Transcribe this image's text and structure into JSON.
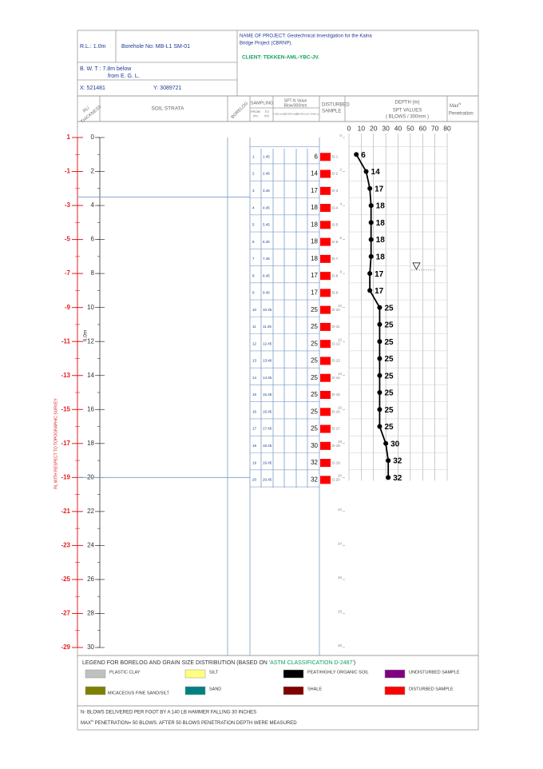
{
  "header": {
    "rl": "R.L.: 1.0m",
    "borehole": "Borehole No: MB-L1 SM-01",
    "bwt_1": "B. W. T : 7.8m below",
    "bwt_2": "from E. G. L.",
    "x": "X: 521481",
    "y": "Y: 3089721",
    "project": [
      "NAME OF PROJECT: Geotechnical Investigation for the Kalna",
      "Bridge Project (CBRNP)."
    ],
    "client": "CLIENT: TEKKEN-AML-YBC-JV."
  },
  "columns": {
    "rl": [
      "RL/",
      "THICKNESS"
    ],
    "strata": "SOIL STRATA",
    "borelog": "BORELOG",
    "sampling": "SAMPLING",
    "from": "FROM",
    "to": "TO",
    "unit": "(m)",
    "spt": [
      "SPT-N Value",
      "Blow/300mm"
    ],
    "spt_sub": [
      "0-150 (mm)",
      "150-300 (mm)",
      "300-450 (mm)",
      "N=(b+c)"
    ],
    "disturbed": [
      "DISTURBED",
      "SAMPLE"
    ],
    "depth": "DEPTH  (m)",
    "spt_values": [
      "SPT VALUES",
      "( BLOWS / 300mm )"
    ],
    "max": [
      "Max",
      "Penetration"
    ],
    "max_sup": "N"
  },
  "depth_lim": [
    0,
    30
  ],
  "depth_ticks": [
    0,
    2,
    4,
    6,
    8,
    10,
    12,
    14,
    16,
    18,
    20,
    22,
    24,
    26,
    28,
    30
  ],
  "rl_ticks": [
    1,
    -1,
    -3,
    -5,
    -7,
    -9,
    -11,
    -13,
    -15,
    -17,
    -19,
    -21,
    -23,
    -25,
    -27,
    -29
  ],
  "rl_axis_title": "RL WITH RESPECT TO TOPOGRAPHIC SURVEY",
  "strata_thickness": "6.0m",
  "stratum_boundaries": [
    3.5,
    20
  ],
  "water_table_depth": 7.8,
  "spt_chart": {
    "xlim": [
      0,
      80
    ],
    "xticks": [
      0,
      10,
      20,
      30,
      40,
      50,
      60,
      70,
      80
    ]
  },
  "samples": [
    {
      "no": "1",
      "from": 1,
      "to": "1.45",
      "n": 6,
      "label": "D-1"
    },
    {
      "no": "2",
      "from": 2,
      "to": "2.45",
      "n": 14,
      "label": "D-2"
    },
    {
      "no": "3",
      "from": 3,
      "to": "3.45",
      "n": 17,
      "label": "D-3"
    },
    {
      "no": "4",
      "from": 4,
      "to": "4.45",
      "n": 18,
      "label": "D-4"
    },
    {
      "no": "5",
      "from": 5,
      "to": "5.45",
      "n": 18,
      "label": "D-5"
    },
    {
      "no": "6",
      "from": 6,
      "to": "6.45",
      "n": 18,
      "label": "D-6"
    },
    {
      "no": "7",
      "from": 7,
      "to": "7.45",
      "n": 18,
      "label": "D-7"
    },
    {
      "no": "8",
      "from": 8,
      "to": "8.45",
      "n": 17,
      "label": "D-8"
    },
    {
      "no": "9",
      "from": 9,
      "to": "9.45",
      "n": 17,
      "label": "D-9"
    },
    {
      "no": "10",
      "from": 10,
      "to": "10.45",
      "n": 25,
      "label": "D-10"
    },
    {
      "no": "11",
      "from": 11,
      "to": "11.45",
      "n": 25,
      "label": "D-11"
    },
    {
      "no": "12",
      "from": 12,
      "to": "12.45",
      "n": 25,
      "label": "D-12"
    },
    {
      "no": "13",
      "from": 13,
      "to": "13.46",
      "n": 25,
      "label": "D-13"
    },
    {
      "no": "14",
      "from": 14,
      "to": "14.45",
      "n": 25,
      "label": "D-14"
    },
    {
      "no": "15",
      "from": 15,
      "to": "15.45",
      "n": 25,
      "label": "D-15"
    },
    {
      "no": "16",
      "from": 16,
      "to": "16.45",
      "n": 25,
      "label": "D-16"
    },
    {
      "no": "17",
      "from": 17,
      "to": "17.45",
      "n": 25,
      "label": "D-17"
    },
    {
      "no": "18",
      "from": 18,
      "to": "18.45",
      "n": 30,
      "label": "D-18"
    },
    {
      "no": "19",
      "from": 19,
      "to": "19.45",
      "n": 32,
      "label": "D-19"
    },
    {
      "no": "20",
      "from": 20,
      "to": "20.45",
      "n": 32,
      "label": "D-20"
    }
  ],
  "legend": {
    "title_1": "LEGEND FOR BORELOG AND GRAIN SIZE DISTRIBUTION (BASED ON ",
    "title_2": "'ASTM CLASSIFICATION D-2487'",
    "title_3": ")",
    "items": [
      {
        "label": "PLASTIC CLAY",
        "color": "#c0c0c0"
      },
      {
        "label": "SILT",
        "color": "#ffff80"
      },
      {
        "label": "PEAT/HIGHLY ORGANIC SOIL",
        "color": "#000000"
      },
      {
        "label": "UNDISTURBED SAMPLE",
        "color": "#800080"
      },
      {
        "label": "MICACEOUS FINE SAND/SILT",
        "color": "#808000"
      },
      {
        "label": "SAND",
        "color": "#008080"
      },
      {
        "label": "SHALE",
        "color": "#800000"
      },
      {
        "label": "DISTURBED SAMPLE",
        "color": "#ff0000"
      }
    ]
  },
  "notes": {
    "line_1": "N- BLOWS DELIVERED PER FOOT BY A 140 LB HAMMER FALLING 30 INCHES",
    "line_2a": "MAX",
    "line_2sup": "N",
    "line_2b": " PENETRATION= 50 BLOWS. AFTER 50 BLOWS PENETRATION DEPTH WERE MEASURED"
  }
}
